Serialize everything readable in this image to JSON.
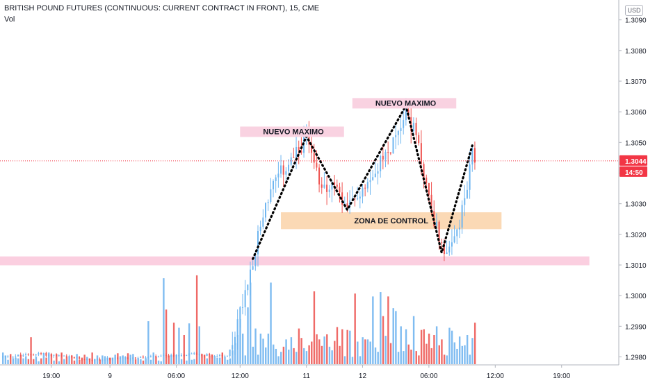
{
  "header": {
    "symbol_title": "BRITISH POUND FUTURES (CONTINUOUS: CURRENT CONTRACT IN FRONT), 15, CME",
    "volume_label": "Vol",
    "currency_label": "USD"
  },
  "colors": {
    "up": "#6fb6f0",
    "down": "#ef5350",
    "vol_up": "#7fbcf1",
    "vol_down": "#ef6a67",
    "zone": "#fbd9b5",
    "support": "#fbcfe0",
    "label_bg": "#f9d2e1",
    "price_tag": "#f23645"
  },
  "chart_data": {
    "type": "candlestick",
    "title": "BRITISH POUND FUTURES (CONTINUOUS: CURRENT CONTRACT IN FRONT), 15, CME",
    "y_axis": {
      "ticks": [
        1.298,
        1.299,
        1.3,
        1.301,
        1.302,
        1.303,
        1.304,
        1.305,
        1.306,
        1.307,
        1.308,
        1.309
      ],
      "tick_labels": [
        "1.2980",
        "1.2990",
        "1.3000",
        "1.3010",
        "1.3020",
        "1.3030",
        "1.3040",
        "1.3050",
        "1.3060",
        "1.3070",
        "1.3080",
        "1.3090"
      ],
      "range": [
        1.2974,
        1.3094
      ]
    },
    "x_axis": {
      "tick_labels": [
        "19:00",
        "9",
        "06:00",
        "12:00",
        "11",
        "12",
        "06:00",
        "12:00",
        "19:00"
      ],
      "tick_bars": [
        19,
        42,
        68,
        93,
        119,
        141,
        167,
        193,
        219
      ]
    },
    "last_price": {
      "value": 1.3044,
      "label": "1.3044",
      "countdown": "14:50"
    },
    "annotations": [
      {
        "text": "NUEVO MAXIMO",
        "kind": "label",
        "bar_start": 93,
        "bar_end": 131,
        "price": 1.30536
      },
      {
        "text": "NUEVO MAXIMO",
        "kind": "label",
        "bar_start": 137,
        "bar_end": 175,
        "price": 1.30629
      },
      {
        "text": "ZONA DE CONTROL",
        "kind": "zone",
        "bar_start": 109,
        "bar_end": 190,
        "price_top": 1.30272,
        "price_bottom": 1.30217
      },
      {
        "text": "",
        "kind": "support",
        "bar_start": 0,
        "bar_end": 210,
        "price_top": 1.30128,
        "price_bottom": 1.30099
      }
    ],
    "pattern_path": [
      {
        "bar": 98,
        "price": 1.3012
      },
      {
        "bar": 119,
        "price": 1.3052
      },
      {
        "bar": 135,
        "price": 1.3028
      },
      {
        "bar": 158,
        "price": 1.3062
      },
      {
        "bar": 172,
        "price": 1.3014
      },
      {
        "bar": 184,
        "price": 1.3049
      }
    ],
    "series": [
      {
        "name": "price",
        "values": []
      },
      {
        "name": "volume",
        "values": []
      }
    ]
  }
}
